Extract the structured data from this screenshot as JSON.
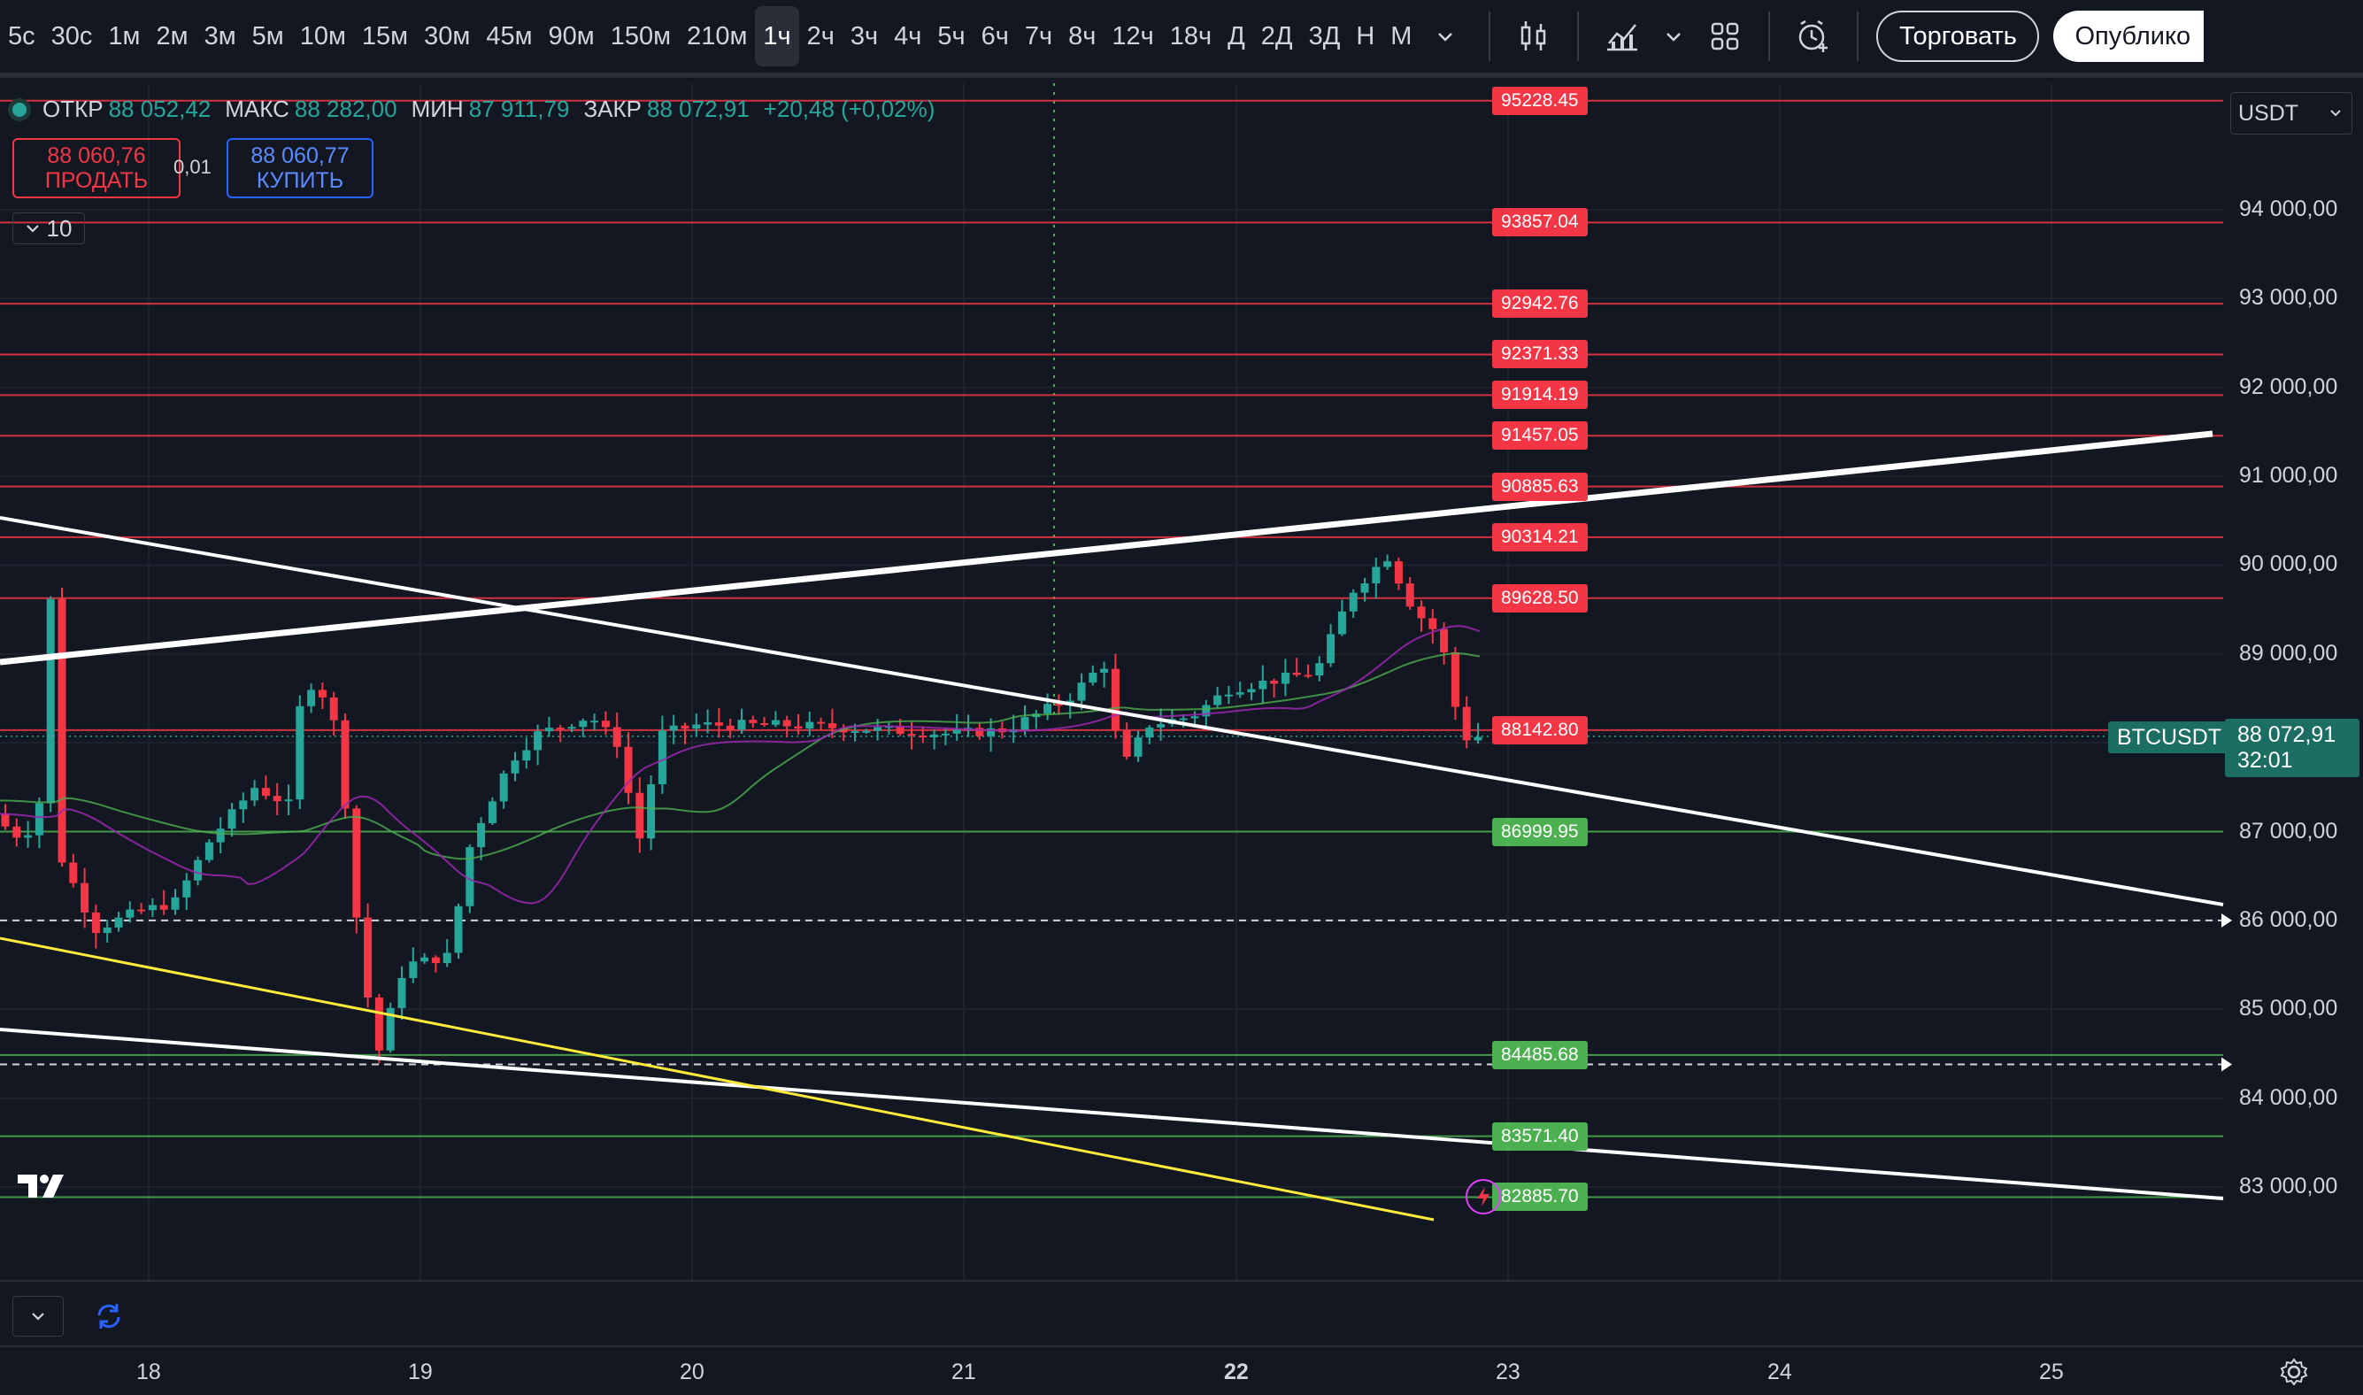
{
  "toolbar": {
    "intervals": [
      "5с",
      "30с",
      "1м",
      "2м",
      "3м",
      "5м",
      "10м",
      "15м",
      "30м",
      "45м",
      "90м",
      "150м",
      "210м",
      "1ч",
      "2ч",
      "3ч",
      "4ч",
      "5ч",
      "6ч",
      "7ч",
      "8ч",
      "12ч",
      "18ч",
      "Д",
      "2Д",
      "3Д",
      "Н",
      "М"
    ],
    "active_interval": "1ч",
    "trade_label": "Торговать",
    "publish_label": "Опублико"
  },
  "legend": {
    "open_label": "ОТКР",
    "open": "88 052,42",
    "high_label": "МАКС",
    "high": "88 282,00",
    "low_label": "МИН",
    "low": "87 911,79",
    "close_label": "ЗАКР",
    "close": "88 072,91",
    "change": "+20,48 (+0,02%)"
  },
  "order_panel": {
    "sell_price": "88 060,76",
    "sell_label": "ПРОДАТЬ",
    "spread": "0,01",
    "buy_price": "88 060,77",
    "buy_label": "КУПИТЬ",
    "collapsed_count": "10"
  },
  "currency": "USDT",
  "symbol": "BTCUSDT",
  "last_price": "88 072,91",
  "countdown": "32:01",
  "price_axis": [
    "94 000,00",
    "93 000,00",
    "92 000,00",
    "91 000,00",
    "90 000,00",
    "89 000,00",
    "87 000,00",
    "86 000,00",
    "85 000,00",
    "84 000,00",
    "83 000,00"
  ],
  "time_axis": [
    "18",
    "19",
    "20",
    "21",
    "22",
    "23",
    "24",
    "25"
  ],
  "levels": [
    {
      "label": "95228.45",
      "value": 95228.45,
      "color": "red"
    },
    {
      "label": "93857.04",
      "value": 93857.04,
      "color": "red"
    },
    {
      "label": "92942.76",
      "value": 92942.76,
      "color": "red"
    },
    {
      "label": "92371.33",
      "value": 92371.33,
      "color": "red"
    },
    {
      "label": "91914.19",
      "value": 91914.19,
      "color": "red"
    },
    {
      "label": "91457.05",
      "value": 91457.05,
      "color": "red"
    },
    {
      "label": "90885.63",
      "value": 90885.63,
      "color": "red"
    },
    {
      "label": "90314.21",
      "value": 90314.21,
      "color": "red"
    },
    {
      "label": "89628.50",
      "value": 89628.5,
      "color": "red"
    },
    {
      "label": "88142.80",
      "value": 88142.8,
      "color": "red"
    },
    {
      "label": "86999.95",
      "value": 86999.95,
      "color": "green"
    },
    {
      "label": "84485.68",
      "value": 84485.68,
      "color": "green"
    },
    {
      "label": "83571.40",
      "value": 83571.4,
      "color": "green"
    },
    {
      "label": "82885.70",
      "value": 82885.7,
      "color": "green"
    }
  ],
  "colors": {
    "up": "#26a69a",
    "down": "#f23645",
    "background": "#131722",
    "ma_green": "#4caf50",
    "ma_purple": "#9c27b0",
    "yellow": "#ffeb3b"
  },
  "icons": [
    "chevron-down-icon",
    "candles-icon",
    "indicators-icon",
    "templates-icon",
    "alert-icon",
    "refresh-icon",
    "settings-icon",
    "lightning-icon"
  ]
}
